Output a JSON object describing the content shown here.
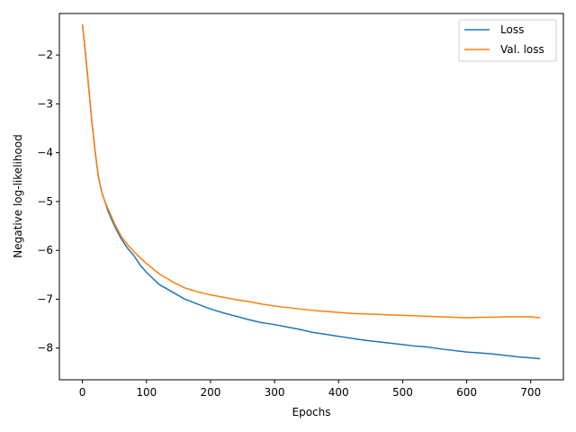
{
  "chart_data": {
    "type": "line",
    "title": "",
    "xlabel": "Epochs",
    "ylabel": "Negative log-likelihood",
    "xlim": [
      -36,
      751
    ],
    "ylim": [
      -8.65,
      -1.15
    ],
    "xticks": [
      0,
      100,
      200,
      300,
      400,
      500,
      600,
      700
    ],
    "xtick_labels": [
      "0",
      "100",
      "200",
      "300",
      "400",
      "500",
      "600",
      "700"
    ],
    "yticks": [
      -2,
      -3,
      -4,
      -5,
      -6,
      -7,
      -8
    ],
    "ytick_labels": [
      "−2",
      "−3",
      "−4",
      "−5",
      "−6",
      "−7",
      "−8"
    ],
    "grid": false,
    "legend_position": "top-right",
    "series": [
      {
        "name": "Loss",
        "color": "#1f77b4",
        "x": [
          0,
          5,
          10,
          15,
          20,
          25,
          30,
          35,
          40,
          50,
          60,
          70,
          80,
          90,
          100,
          120,
          140,
          160,
          180,
          200,
          220,
          240,
          260,
          280,
          300,
          320,
          340,
          360,
          380,
          400,
          420,
          440,
          460,
          480,
          500,
          520,
          540,
          560,
          580,
          600,
          620,
          640,
          660,
          680,
          700,
          715
        ],
        "y": [
          -1.37,
          -2.0,
          -2.7,
          -3.4,
          -4.0,
          -4.5,
          -4.8,
          -5.0,
          -5.2,
          -5.5,
          -5.75,
          -5.95,
          -6.1,
          -6.3,
          -6.45,
          -6.7,
          -6.85,
          -7.0,
          -7.1,
          -7.2,
          -7.28,
          -7.35,
          -7.42,
          -7.48,
          -7.52,
          -7.57,
          -7.62,
          -7.68,
          -7.72,
          -7.76,
          -7.8,
          -7.84,
          -7.87,
          -7.9,
          -7.93,
          -7.96,
          -7.98,
          -8.02,
          -8.05,
          -8.08,
          -8.1,
          -8.12,
          -8.15,
          -8.18,
          -8.2,
          -8.22
        ]
      },
      {
        "name": "Val. loss",
        "color": "#ff7f0e",
        "x": [
          0,
          5,
          10,
          15,
          20,
          25,
          30,
          35,
          40,
          50,
          60,
          70,
          80,
          90,
          100,
          120,
          140,
          160,
          180,
          200,
          220,
          240,
          260,
          280,
          300,
          320,
          340,
          360,
          380,
          400,
          420,
          440,
          460,
          480,
          500,
          520,
          540,
          560,
          580,
          600,
          620,
          640,
          660,
          680,
          700,
          715
        ],
        "y": [
          -1.37,
          -2.0,
          -2.7,
          -3.4,
          -4.0,
          -4.5,
          -4.8,
          -5.0,
          -5.15,
          -5.45,
          -5.7,
          -5.88,
          -6.02,
          -6.15,
          -6.27,
          -6.48,
          -6.64,
          -6.77,
          -6.85,
          -6.91,
          -6.96,
          -7.01,
          -7.05,
          -7.1,
          -7.14,
          -7.17,
          -7.2,
          -7.23,
          -7.25,
          -7.27,
          -7.29,
          -7.3,
          -7.31,
          -7.32,
          -7.33,
          -7.34,
          -7.35,
          -7.36,
          -7.37,
          -7.38,
          -7.37,
          -7.37,
          -7.36,
          -7.36,
          -7.36,
          -7.38
        ]
      }
    ]
  }
}
